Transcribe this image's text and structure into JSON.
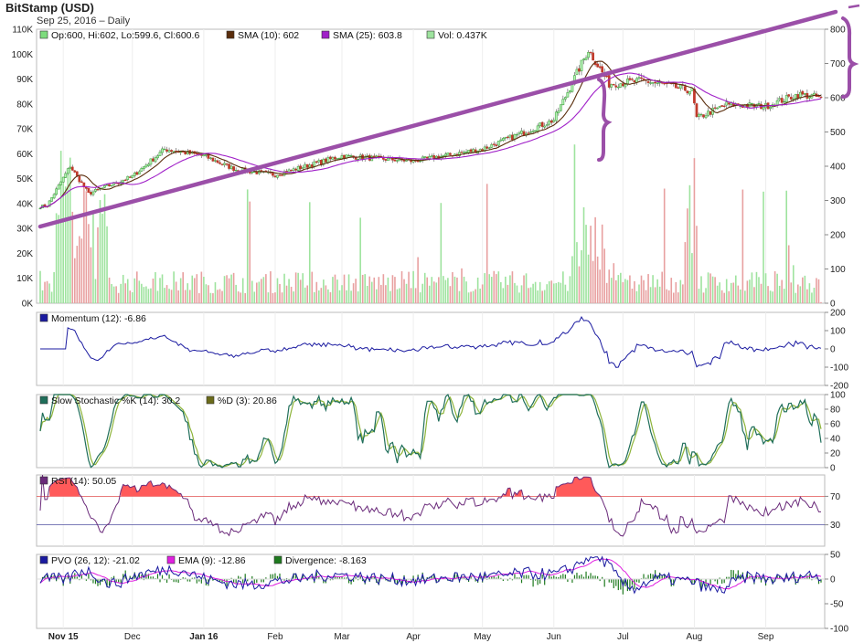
{
  "header": {
    "title": "BitStamp (USD)",
    "subtitle": "Sep 25, 2016 – Daily"
  },
  "x_ticks": [
    "Nov 15",
    "Dec",
    "Jan 16",
    "Feb",
    "Mar",
    "Apr",
    "May",
    "Jun",
    "Jul",
    "Aug",
    "Sep"
  ],
  "x_ticks_bold": [
    "Nov 15",
    "Jan 16"
  ],
  "colors": {
    "candle_up": "#2e9e2e",
    "candle_down": "#c0392b",
    "sma10": "#5a2d0c",
    "sma25": "#a020c8",
    "vol_up": "#9ee39e",
    "vol_down": "#e8a0a0",
    "momentum": "#1a1aa0",
    "stoch_k": "#1f6e5a",
    "stoch_d": "#8db43a",
    "rsi": "#6a2a7a",
    "rsi_fill": "#ff5a5a",
    "pvo": "#1a1aa0",
    "ema": "#e020e0",
    "divergence": "#1e7a1e",
    "annotation": "#9b4fa8"
  },
  "chart_data": [
    {
      "panel": "price",
      "type": "candlestick",
      "legend": [
        "Op:600, Hi:602, Lo:599.6, Cl:600.6",
        "SMA (10): 602",
        "SMA (25): 603.8",
        "Vol: 0.437K"
      ],
      "y_right_ticks": [
        "0",
        "100",
        "200",
        "300",
        "400",
        "500",
        "600",
        "700",
        "800"
      ],
      "y_left_ticks": [
        "0K",
        "10K",
        "20K",
        "30K",
        "40K",
        "50K",
        "60K",
        "70K",
        "80K",
        "90K",
        "100K",
        "110K"
      ],
      "ylim": [
        0,
        800
      ],
      "vol_ylim": [
        0,
        110000
      ],
      "key_points": [
        {
          "date": "2015-10-25",
          "close": 285
        },
        {
          "date": "2015-11-04",
          "close": 400
        },
        {
          "date": "2015-11-12",
          "close": 320
        },
        {
          "date": "2015-12-01",
          "close": 370
        },
        {
          "date": "2015-12-15",
          "close": 450
        },
        {
          "date": "2016-01-01",
          "close": 430
        },
        {
          "date": "2016-01-15",
          "close": 390
        },
        {
          "date": "2016-02-01",
          "close": 375
        },
        {
          "date": "2016-03-01",
          "close": 430
        },
        {
          "date": "2016-04-01",
          "close": 415
        },
        {
          "date": "2016-05-01",
          "close": 450
        },
        {
          "date": "2016-06-01",
          "close": 535
        },
        {
          "date": "2016-06-16",
          "close": 740
        },
        {
          "date": "2016-06-25",
          "close": 640
        },
        {
          "date": "2016-07-10",
          "close": 650
        },
        {
          "date": "2016-07-31",
          "close": 620
        },
        {
          "date": "2016-08-02",
          "close": 540
        },
        {
          "date": "2016-08-15",
          "close": 580
        },
        {
          "date": "2016-09-01",
          "close": 575
        },
        {
          "date": "2016-09-15",
          "close": 610
        },
        {
          "date": "2016-09-25",
          "close": 600.6
        }
      ]
    },
    {
      "panel": "momentum",
      "type": "line",
      "legend": [
        "Momentum (12): -6.86"
      ],
      "y_ticks": [
        "-200",
        "-100",
        "0",
        "100",
        "200"
      ],
      "ylim": [
        -200,
        200
      ]
    },
    {
      "panel": "stochastic",
      "type": "line",
      "legend": [
        "Slow Stochastic %K (14): 30.2",
        "%D (3): 20.86"
      ],
      "y_ticks": [
        "0",
        "20",
        "40",
        "60",
        "80",
        "100"
      ],
      "ylim": [
        0,
        100
      ]
    },
    {
      "panel": "rsi",
      "type": "line",
      "legend": [
        "RSI (14): 50.05"
      ],
      "y_ticks": [
        "30",
        "70"
      ],
      "ylim": [
        0,
        100
      ],
      "levels": [
        30,
        70
      ]
    },
    {
      "panel": "pvo",
      "type": "line",
      "legend": [
        "PVO (26, 12): -21.02",
        "EMA (9): -12.86",
        "Divergence: -8.163"
      ],
      "y_ticks": [
        "-100",
        "-50",
        "0",
        "50"
      ],
      "ylim": [
        -100,
        50
      ]
    }
  ]
}
